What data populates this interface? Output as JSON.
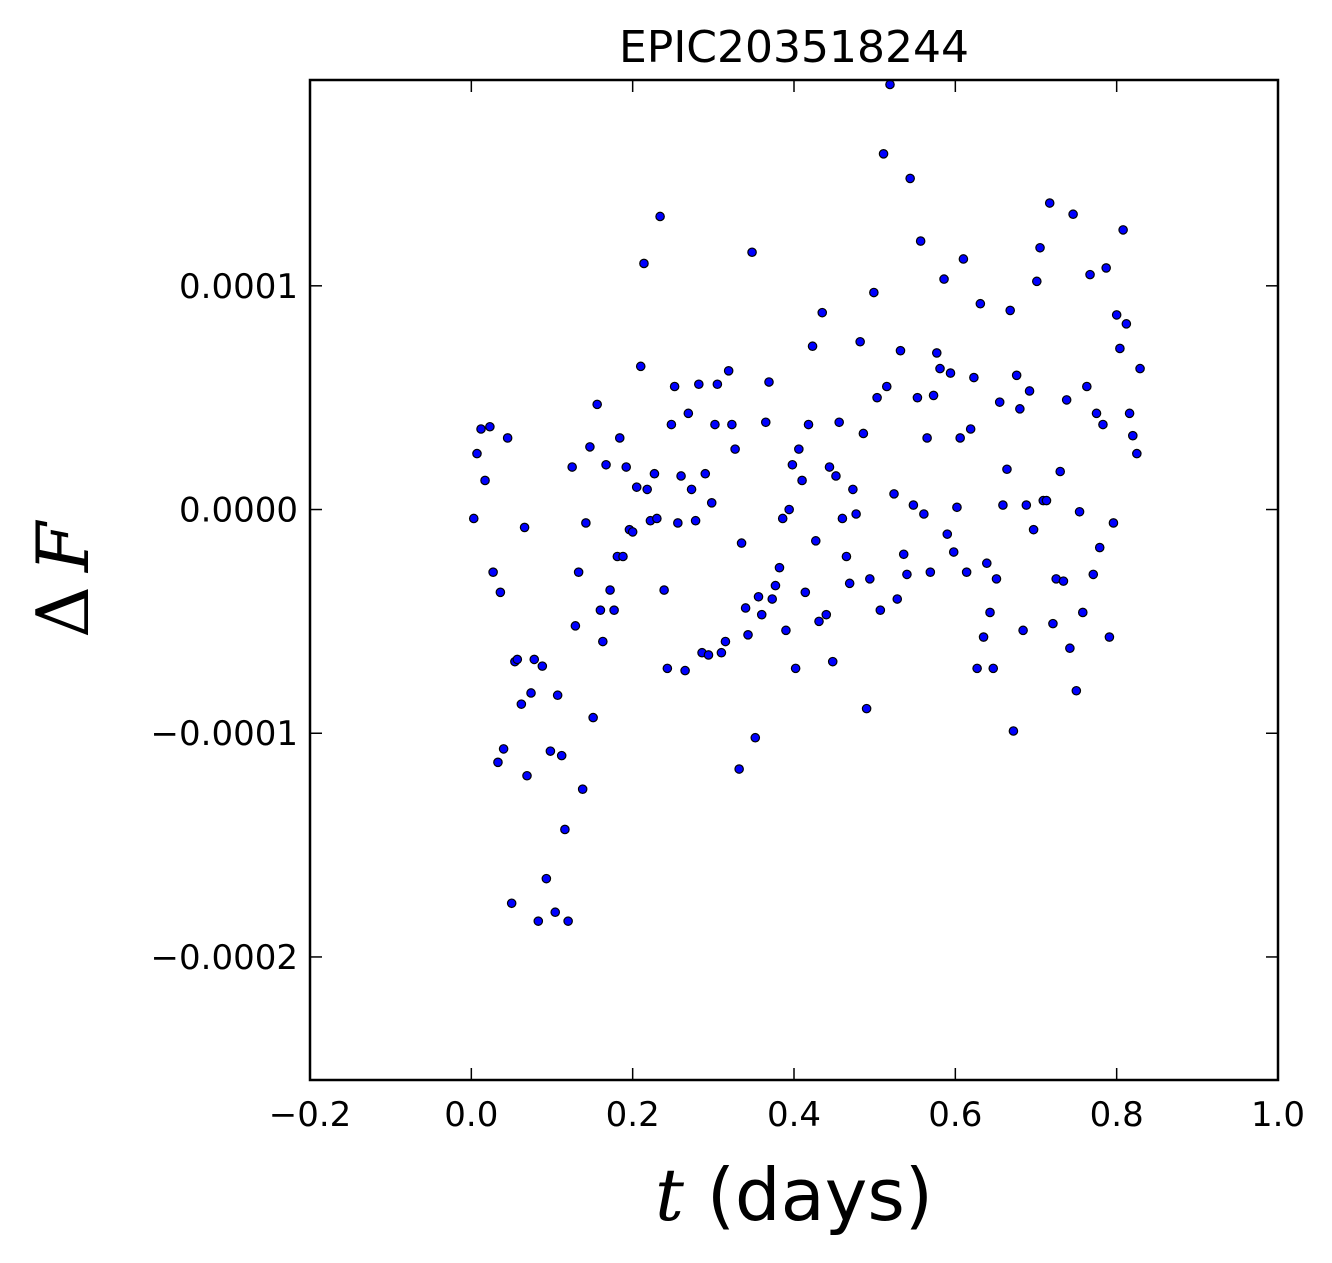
{
  "chart_data": {
    "type": "scatter",
    "title": "EPIC203518244",
    "xlabel": {
      "math": "t",
      "text": " (days)"
    },
    "ylabel": {
      "symbol": "Δ",
      "math": "F"
    },
    "xlim": [
      -0.2,
      1.0
    ],
    "ylim": [
      -0.000255,
      0.000192
    ],
    "x_ticks": [
      -0.2,
      0.0,
      0.2,
      0.4,
      0.6,
      0.8,
      1.0
    ],
    "x_tick_labels": [
      "−0.2",
      "0.0",
      "0.2",
      "0.4",
      "0.6",
      "0.8",
      "1.0"
    ],
    "y_ticks": [
      0.0001,
      0.0,
      -0.0001,
      -0.0002
    ],
    "y_tick_labels": [
      "0.0001",
      "0.0000",
      "−0.0001",
      "−0.0002"
    ],
    "grid": false,
    "marker_color": "#0000ff",
    "marker_edge": "#000000",
    "points": [
      [
        0.003,
        -4e-06
      ],
      [
        0.007,
        2.5e-05
      ],
      [
        0.012,
        3.6e-05
      ],
      [
        0.017,
        1.3e-05
      ],
      [
        0.023,
        3.7e-05
      ],
      [
        0.027,
        -2.8e-05
      ],
      [
        0.033,
        -0.000113
      ],
      [
        0.036,
        -3.7e-05
      ],
      [
        0.04,
        -0.000107
      ],
      [
        0.045,
        3.2e-05
      ],
      [
        0.05,
        -0.000176
      ],
      [
        0.054,
        -6.8e-05
      ],
      [
        0.057,
        -6.7e-05
      ],
      [
        0.062,
        -8.7e-05
      ],
      [
        0.066,
        -8e-06
      ],
      [
        0.069,
        -0.000119
      ],
      [
        0.074,
        -8.2e-05
      ],
      [
        0.078,
        -6.7e-05
      ],
      [
        0.083,
        -0.000184
      ],
      [
        0.088,
        -7e-05
      ],
      [
        0.093,
        -0.000165
      ],
      [
        0.098,
        -0.000108
      ],
      [
        0.104,
        -0.00018
      ],
      [
        0.107,
        -8.3e-05
      ],
      [
        0.112,
        -0.00011
      ],
      [
        0.116,
        -0.000143
      ],
      [
        0.12,
        -0.000184
      ],
      [
        0.125,
        1.9e-05
      ],
      [
        0.129,
        -5.2e-05
      ],
      [
        0.133,
        -2.8e-05
      ],
      [
        0.138,
        -0.000125
      ],
      [
        0.142,
        -6e-06
      ],
      [
        0.147,
        2.8e-05
      ],
      [
        0.151,
        -9.3e-05
      ],
      [
        0.156,
        4.7e-05
      ],
      [
        0.16,
        -4.5e-05
      ],
      [
        0.163,
        -5.9e-05
      ],
      [
        0.167,
        2e-05
      ],
      [
        0.172,
        -3.6e-05
      ],
      [
        0.177,
        -4.5e-05
      ],
      [
        0.181,
        -2.1e-05
      ],
      [
        0.184,
        3.2e-05
      ],
      [
        0.188,
        -2.1e-05
      ],
      [
        0.192,
        1.9e-05
      ],
      [
        0.196,
        -9e-06
      ],
      [
        0.2,
        -1e-05
      ],
      [
        0.205,
        1e-05
      ],
      [
        0.21,
        6.4e-05
      ],
      [
        0.214,
        0.00011
      ],
      [
        0.218,
        9e-06
      ],
      [
        0.222,
        -5e-06
      ],
      [
        0.227,
        1.6e-05
      ],
      [
        0.23,
        -4e-06
      ],
      [
        0.234,
        0.000131
      ],
      [
        0.239,
        -3.6e-05
      ],
      [
        0.243,
        -7.1e-05
      ],
      [
        0.248,
        3.8e-05
      ],
      [
        0.252,
        5.5e-05
      ],
      [
        0.256,
        -6e-06
      ],
      [
        0.26,
        1.5e-05
      ],
      [
        0.265,
        -7.2e-05
      ],
      [
        0.269,
        4.3e-05
      ],
      [
        0.273,
        9e-06
      ],
      [
        0.278,
        -5e-06
      ],
      [
        0.282,
        5.6e-05
      ],
      [
        0.286,
        -6.4e-05
      ],
      [
        0.29,
        1.6e-05
      ],
      [
        0.294,
        -6.5e-05
      ],
      [
        0.298,
        3e-06
      ],
      [
        0.302,
        3.8e-05
      ],
      [
        0.305,
        5.6e-05
      ],
      [
        0.31,
        -6.4e-05
      ],
      [
        0.315,
        -5.9e-05
      ],
      [
        0.319,
        6.2e-05
      ],
      [
        0.323,
        3.8e-05
      ],
      [
        0.327,
        2.7e-05
      ],
      [
        0.332,
        -0.000116
      ],
      [
        0.335,
        -1.5e-05
      ],
      [
        0.34,
        -4.4e-05
      ],
      [
        0.343,
        -5.6e-05
      ],
      [
        0.348,
        0.000115
      ],
      [
        0.352,
        -0.000102
      ],
      [
        0.356,
        -3.9e-05
      ],
      [
        0.36,
        -4.7e-05
      ],
      [
        0.365,
        3.9e-05
      ],
      [
        0.369,
        5.7e-05
      ],
      [
        0.373,
        -4e-05
      ],
      [
        0.377,
        -3.4e-05
      ],
      [
        0.382,
        -2.6e-05
      ],
      [
        0.386,
        -4e-06
      ],
      [
        0.39,
        -5.4e-05
      ],
      [
        0.394,
        0.0
      ],
      [
        0.398,
        2e-05
      ],
      [
        0.402,
        -7.1e-05
      ],
      [
        0.406,
        2.7e-05
      ],
      [
        0.41,
        1.3e-05
      ],
      [
        0.414,
        -3.7e-05
      ],
      [
        0.418,
        3.8e-05
      ],
      [
        0.423,
        7.3e-05
      ],
      [
        0.427,
        -1.4e-05
      ],
      [
        0.431,
        -5e-05
      ],
      [
        0.435,
        8.8e-05
      ],
      [
        0.44,
        -4.7e-05
      ],
      [
        0.444,
        1.9e-05
      ],
      [
        0.448,
        -6.8e-05
      ],
      [
        0.452,
        1.5e-05
      ],
      [
        0.456,
        3.9e-05
      ],
      [
        0.46,
        -4e-06
      ],
      [
        0.465,
        -2.1e-05
      ],
      [
        0.469,
        -3.3e-05
      ],
      [
        0.473,
        9e-06
      ],
      [
        0.477,
        -2e-06
      ],
      [
        0.482,
        7.5e-05
      ],
      [
        0.486,
        3.4e-05
      ],
      [
        0.49,
        -8.9e-05
      ],
      [
        0.494,
        -3.1e-05
      ],
      [
        0.499,
        9.7e-05
      ],
      [
        0.503,
        5e-05
      ],
      [
        0.507,
        -4.5e-05
      ],
      [
        0.511,
        0.000159
      ],
      [
        0.515,
        5.5e-05
      ],
      [
        0.519,
        0.00019
      ],
      [
        0.524,
        7e-06
      ],
      [
        0.528,
        -4e-05
      ],
      [
        0.532,
        7.1e-05
      ],
      [
        0.536,
        -2e-05
      ],
      [
        0.54,
        -2.9e-05
      ],
      [
        0.544,
        0.000148
      ],
      [
        0.548,
        2e-06
      ],
      [
        0.553,
        5e-05
      ],
      [
        0.557,
        0.00012
      ],
      [
        0.561,
        -2e-06
      ],
      [
        0.565,
        3.2e-05
      ],
      [
        0.569,
        -2.8e-05
      ],
      [
        0.573,
        5.1e-05
      ],
      [
        0.577,
        7e-05
      ],
      [
        0.581,
        6.3e-05
      ],
      [
        0.586,
        0.000103
      ],
      [
        0.59,
        -1.1e-05
      ],
      [
        0.594,
        6.1e-05
      ],
      [
        0.598,
        -1.9e-05
      ],
      [
        0.602,
        1e-06
      ],
      [
        0.606,
        3.2e-05
      ],
      [
        0.61,
        0.000112
      ],
      [
        0.614,
        -2.8e-05
      ],
      [
        0.619,
        3.6e-05
      ],
      [
        0.623,
        5.9e-05
      ],
      [
        0.627,
        -7.1e-05
      ],
      [
        0.631,
        9.2e-05
      ],
      [
        0.635,
        -5.7e-05
      ],
      [
        0.639,
        -2.4e-05
      ],
      [
        0.643,
        -4.6e-05
      ],
      [
        0.647,
        -7.1e-05
      ],
      [
        0.651,
        -3.1e-05
      ],
      [
        0.655,
        4.8e-05
      ],
      [
        0.659,
        2e-06
      ],
      [
        0.664,
        1.8e-05
      ],
      [
        0.668,
        8.9e-05
      ],
      [
        0.672,
        -9.9e-05
      ],
      [
        0.676,
        6e-05
      ],
      [
        0.68,
        4.5e-05
      ],
      [
        0.684,
        -5.4e-05
      ],
      [
        0.688,
        2e-06
      ],
      [
        0.692,
        5.3e-05
      ],
      [
        0.697,
        -9e-06
      ],
      [
        0.701,
        0.000102
      ],
      [
        0.705,
        0.000117
      ],
      [
        0.709,
        4e-06
      ],
      [
        0.713,
        4e-06
      ],
      [
        0.717,
        0.000137
      ],
      [
        0.721,
        -5.1e-05
      ],
      [
        0.725,
        -3.1e-05
      ],
      [
        0.73,
        1.7e-05
      ],
      [
        0.734,
        -3.2e-05
      ],
      [
        0.738,
        4.9e-05
      ],
      [
        0.742,
        -6.2e-05
      ],
      [
        0.746,
        0.000132
      ],
      [
        0.75,
        -8.1e-05
      ],
      [
        0.754,
        -1e-06
      ],
      [
        0.758,
        -4.6e-05
      ],
      [
        0.763,
        5.5e-05
      ],
      [
        0.767,
        0.000105
      ],
      [
        0.771,
        -2.9e-05
      ],
      [
        0.775,
        4.3e-05
      ],
      [
        0.779,
        -1.7e-05
      ],
      [
        0.783,
        3.8e-05
      ],
      [
        0.787,
        0.000108
      ],
      [
        0.791,
        -5.7e-05
      ],
      [
        0.796,
        -6e-06
      ],
      [
        0.8,
        8.7e-05
      ],
      [
        0.804,
        7.2e-05
      ],
      [
        0.808,
        0.000125
      ],
      [
        0.812,
        8.3e-05
      ],
      [
        0.816,
        4.3e-05
      ],
      [
        0.82,
        3.3e-05
      ],
      [
        0.825,
        2.5e-05
      ],
      [
        0.829,
        6.3e-05
      ]
    ]
  }
}
